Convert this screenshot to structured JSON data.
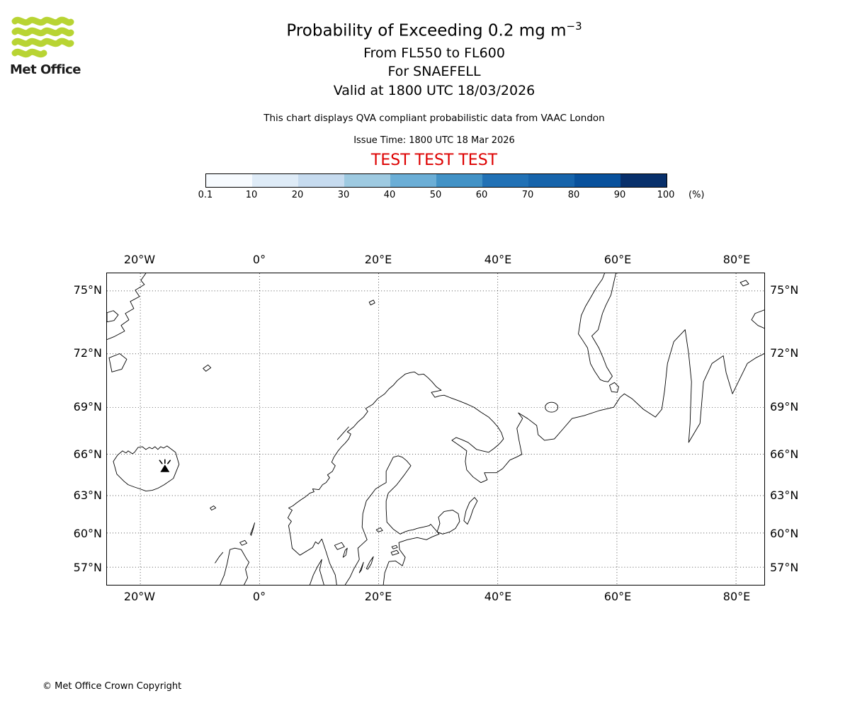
{
  "branding": {
    "logo_text": "Met Office",
    "logo_color": "#b8d433",
    "copyright": "© Met Office Crown Copyright"
  },
  "header": {
    "title": "Probability of Exceeding 0.2 mg m",
    "title_sup": "−3",
    "flight_levels": "From FL550 to FL600",
    "volcano_line": "For SNAEFELL",
    "valid_line": "Valid at 1800 UTC 18/03/2026",
    "qva_note": "This chart displays QVA compliant probabilistic data from VAAC London",
    "issue_time": "Issue Time: 1800 UTC 18 Mar 2026",
    "test_banner": "TEST TEST TEST",
    "test_banner_color": "#dd0000"
  },
  "colorbar": {
    "tick_labels": [
      "0.1",
      "10",
      "20",
      "30",
      "40",
      "50",
      "60",
      "70",
      "80",
      "90",
      "100"
    ],
    "unit_label": "(%)",
    "segment_colors": [
      "#f7fbff",
      "#deebf7",
      "#c6dbef",
      "#9ecae1",
      "#6baed6",
      "#4292c6",
      "#2171b5",
      "#1664ab",
      "#08519c",
      "#08306b"
    ]
  },
  "map": {
    "x_tick_labels": [
      "20°W",
      "0°",
      "20°E",
      "40°E",
      "60°E",
      "80°E"
    ],
    "y_tick_labels": [
      "75°N",
      "72°N",
      "69°N",
      "66°N",
      "63°N",
      "60°N",
      "57°N"
    ]
  }
}
